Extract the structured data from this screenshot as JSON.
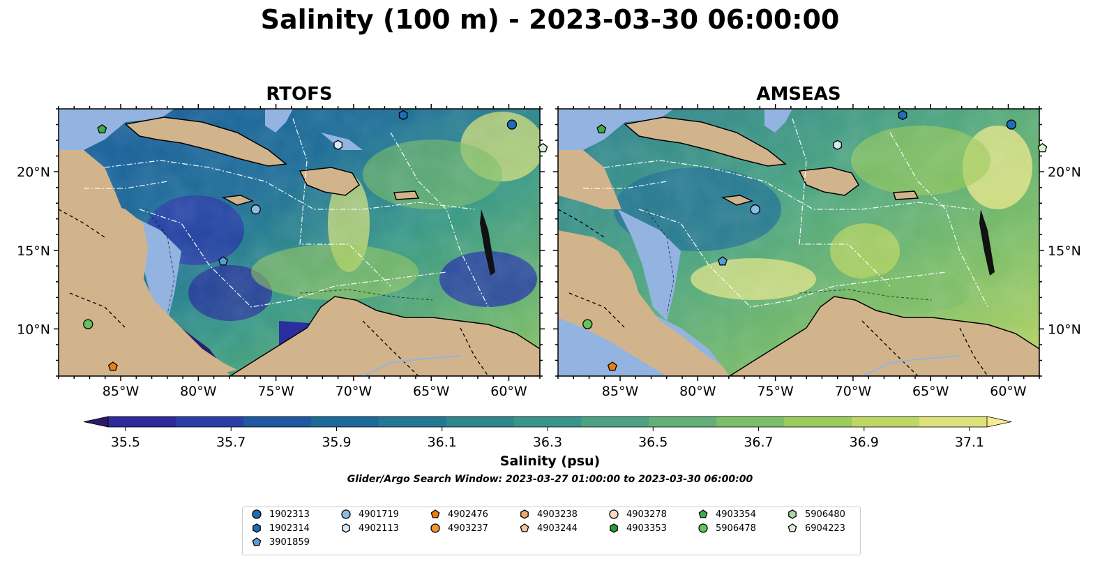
{
  "title": "Salinity (100 m) - 2023-03-30 06:00:00",
  "panels": [
    {
      "name": "RTOFS"
    },
    {
      "name": "AMSEAS"
    }
  ],
  "axes": {
    "lon_ticks": [
      "85°W",
      "80°W",
      "75°W",
      "70°W",
      "65°W",
      "60°W"
    ],
    "lat_ticks": [
      "20°N",
      "15°N",
      "10°N"
    ],
    "lon_range": [
      -89,
      -58
    ],
    "lat_range": [
      7,
      24
    ]
  },
  "colorbar": {
    "label": "Salinity (psu)",
    "ticks": [
      "35.5",
      "35.7",
      "35.9",
      "36.1",
      "36.3",
      "36.5",
      "36.7",
      "36.9",
      "37.1"
    ],
    "colors": [
      "#2a1a6b",
      "#2d2a9a",
      "#2a3ea8",
      "#1f57a0",
      "#1d6a98",
      "#237893",
      "#2d878e",
      "#3a948a",
      "#4ca283",
      "#62b077",
      "#7dbe6a",
      "#9ccb5e",
      "#bdd765",
      "#dde27a",
      "#f6ec8e"
    ]
  },
  "search_window": "Glider/Argo Search Window: 2023-03-27 01:00:00 to 2023-03-30 06:00:00",
  "legend": [
    {
      "id": "1902313",
      "marker": "circle",
      "color": "#1f6db3"
    },
    {
      "id": "1902314",
      "marker": "hexagon",
      "color": "#1f6db3"
    },
    {
      "id": "3901859",
      "marker": "pentagon",
      "color": "#5b9bd5"
    },
    {
      "id": "4901719",
      "marker": "circle",
      "color": "#8cbde3"
    },
    {
      "id": "4902113",
      "marker": "hexagon",
      "color": "#d6e8f7"
    },
    {
      "id": "4902476",
      "marker": "pentagon",
      "color": "#ee7d0f"
    },
    {
      "id": "4903237",
      "marker": "circle",
      "color": "#f5932f"
    },
    {
      "id": "4903238",
      "marker": "hexagon",
      "color": "#f7a866"
    },
    {
      "id": "4903244",
      "marker": "pentagon",
      "color": "#fbc69a"
    },
    {
      "id": "4903278",
      "marker": "circle",
      "color": "#fcdcc6"
    },
    {
      "id": "4903353",
      "marker": "hexagon",
      "color": "#2a9a35"
    },
    {
      "id": "4903354",
      "marker": "pentagon",
      "color": "#41ab4b"
    },
    {
      "id": "5906478",
      "marker": "circle",
      "color": "#62c45e"
    },
    {
      "id": "5906480",
      "marker": "hexagon",
      "color": "#a6dba0"
    },
    {
      "id": "6904223",
      "marker": "pentagon",
      "color": "#d8f0d3"
    }
  ]
}
